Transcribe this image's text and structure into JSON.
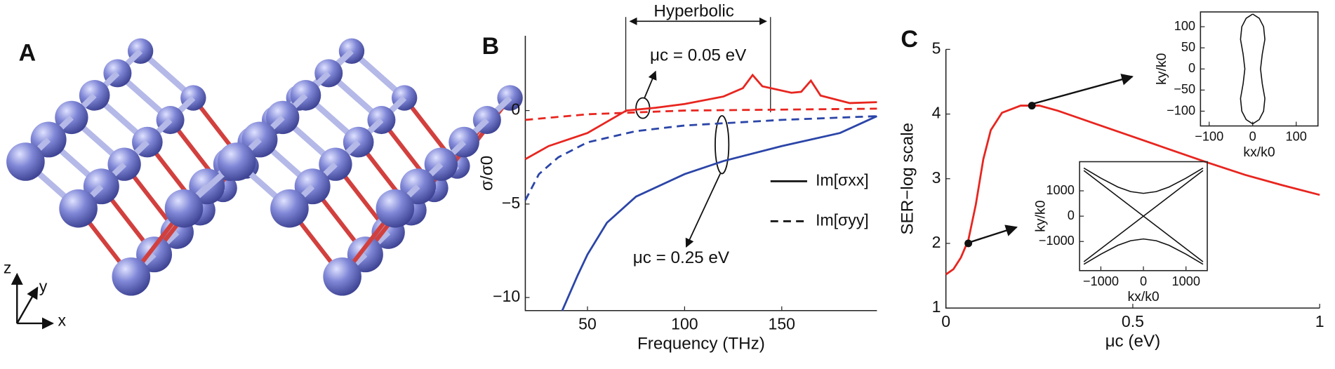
{
  "figure": {
    "panel_labels": [
      "A",
      "B",
      "C"
    ],
    "axis_triad": [
      "x",
      "y",
      "z"
    ]
  },
  "chart_data": [
    {
      "type": "line",
      "xlabel": "Frequency (THz)",
      "ylabel": "σ/σ0",
      "xlim": [
        18,
        199
      ],
      "ylim": [
        -10.7,
        4
      ],
      "xticks": [
        50,
        100,
        150
      ],
      "yticks": [
        0,
        {
          "value": -5,
          "label": "−5"
        },
        {
          "value": -10,
          "label": "−10"
        }
      ],
      "annotations": [
        "Hyperbolic",
        "μc = 0.05 eV",
        "μc = 0.25 eV"
      ],
      "legend": [
        {
          "label": "Im[σxx]",
          "dash": false
        },
        {
          "label": "Im[σyy]",
          "dash": true
        }
      ],
      "series": [
        {
          "color": "#e8251f",
          "dash": false,
          "x": [
            18,
            30,
            50,
            70,
            85,
            100,
            120,
            130,
            135,
            140,
            155,
            160,
            165,
            170,
            185,
            199
          ],
          "values": [
            -2.6,
            -1.9,
            -1.2,
            0,
            0.15,
            0.35,
            0.75,
            1.2,
            1.9,
            1.3,
            0.95,
            1.0,
            1.6,
            0.8,
            0.4,
            0.45
          ]
        },
        {
          "color": "#e8251f",
          "dash": true,
          "x": [
            18,
            50,
            100,
            150,
            199
          ],
          "values": [
            -0.5,
            -0.2,
            0,
            0.05,
            0.1
          ]
        },
        {
          "color": "#2b45a8",
          "dash": false,
          "x": [
            37,
            45,
            50,
            60,
            75,
            100,
            120,
            150,
            180,
            199
          ],
          "values": [
            -10.7,
            -8.8,
            -7.7,
            -6.0,
            -4.6,
            -3.4,
            -2.7,
            -1.9,
            -1.2,
            -0.3
          ]
        },
        {
          "color": "#2b45a8",
          "dash": true,
          "x": [
            18,
            25,
            35,
            50,
            75,
            100,
            150,
            199
          ],
          "values": [
            -4.8,
            -3.4,
            -2.5,
            -1.7,
            -1.1,
            -0.8,
            -0.5,
            -0.3
          ]
        }
      ]
    },
    {
      "type": "line",
      "xlabel": "μc (eV)",
      "ylabel": "SER−log scale",
      "xlim": [
        0,
        1
      ],
      "ylim": [
        1,
        5
      ],
      "xticks": [
        0,
        0.5,
        1
      ],
      "yticks": [
        1,
        2,
        3,
        4,
        5
      ],
      "series": [
        {
          "color": "#e8251f",
          "dash": false,
          "x": [
            0,
            0.02,
            0.04,
            0.06,
            0.08,
            0.1,
            0.12,
            0.15,
            0.2,
            0.25,
            0.3,
            0.4,
            0.5,
            0.6,
            0.7,
            0.8,
            0.9,
            1.0
          ],
          "values": [
            1.52,
            1.6,
            1.78,
            2.05,
            2.6,
            3.3,
            3.75,
            4.02,
            4.13,
            4.13,
            4.05,
            3.85,
            3.65,
            3.45,
            3.25,
            3.06,
            2.9,
            2.75
          ]
        }
      ],
      "points": {
        "color": "#111111",
        "x": [
          0.06,
          0.23
        ],
        "values": [
          2.0,
          4.13
        ]
      }
    },
    {
      "type": "line",
      "xlabel": "kx/k0",
      "ylabel": "ky/k0",
      "xlim": [
        -120,
        150
      ],
      "ylim": [
        -135,
        135
      ],
      "xticks": [
        {
          "value": -100,
          "label": "−100"
        },
        0,
        100
      ],
      "yticks": [
        100,
        50,
        0,
        {
          "value": -50,
          "label": "−50"
        },
        {
          "value": -100,
          "label": "−100"
        }
      ],
      "series": [
        {
          "color": "#111111",
          "dash": false,
          "x": [
            0,
            15,
            25,
            28,
            22,
            18,
            22,
            28,
            25,
            15,
            0,
            -15,
            -25,
            -28,
            -22,
            -18,
            -22,
            -28,
            -25,
            -15,
            0
          ],
          "values": [
            130,
            120,
            100,
            70,
            35,
            0,
            -35,
            -70,
            -100,
            -120,
            -130,
            -120,
            -100,
            -70,
            -35,
            0,
            35,
            70,
            100,
            120,
            130
          ]
        }
      ]
    },
    {
      "type": "line",
      "xlabel": "kx/k0",
      "ylabel": "ky/k0",
      "xlim": [
        -1500,
        1500
      ],
      "ylim": [
        -2150,
        2150
      ],
      "xticks": [
        {
          "value": -1000,
          "label": "−1000"
        },
        0,
        1000
      ],
      "yticks": [
        1000,
        0,
        {
          "value": -1000,
          "label": "−1000"
        }
      ],
      "series": [
        {
          "color": "#111111",
          "dash": false,
          "x": [
            -1400,
            -1000,
            -600,
            -300,
            0,
            300,
            600,
            1000,
            1400
          ],
          "values": [
            1900,
            1500,
            1150,
            970,
            900,
            970,
            1150,
            1500,
            1900
          ]
        },
        {
          "color": "#111111",
          "dash": false,
          "x": [
            -1400,
            -1000,
            -600,
            -300,
            0,
            300,
            600,
            1000,
            1400
          ],
          "values": [
            -1900,
            -1500,
            -1150,
            -970,
            -900,
            -970,
            -1150,
            -1500,
            -1900
          ]
        },
        {
          "color": "#111111",
          "dash": false,
          "x": [
            -1400,
            0,
            1400
          ],
          "values": [
            1800,
            0,
            -1800
          ]
        },
        {
          "color": "#111111",
          "dash": false,
          "x": [
            -1400,
            0,
            1400
          ],
          "values": [
            -1800,
            0,
            1800
          ]
        }
      ]
    }
  ]
}
